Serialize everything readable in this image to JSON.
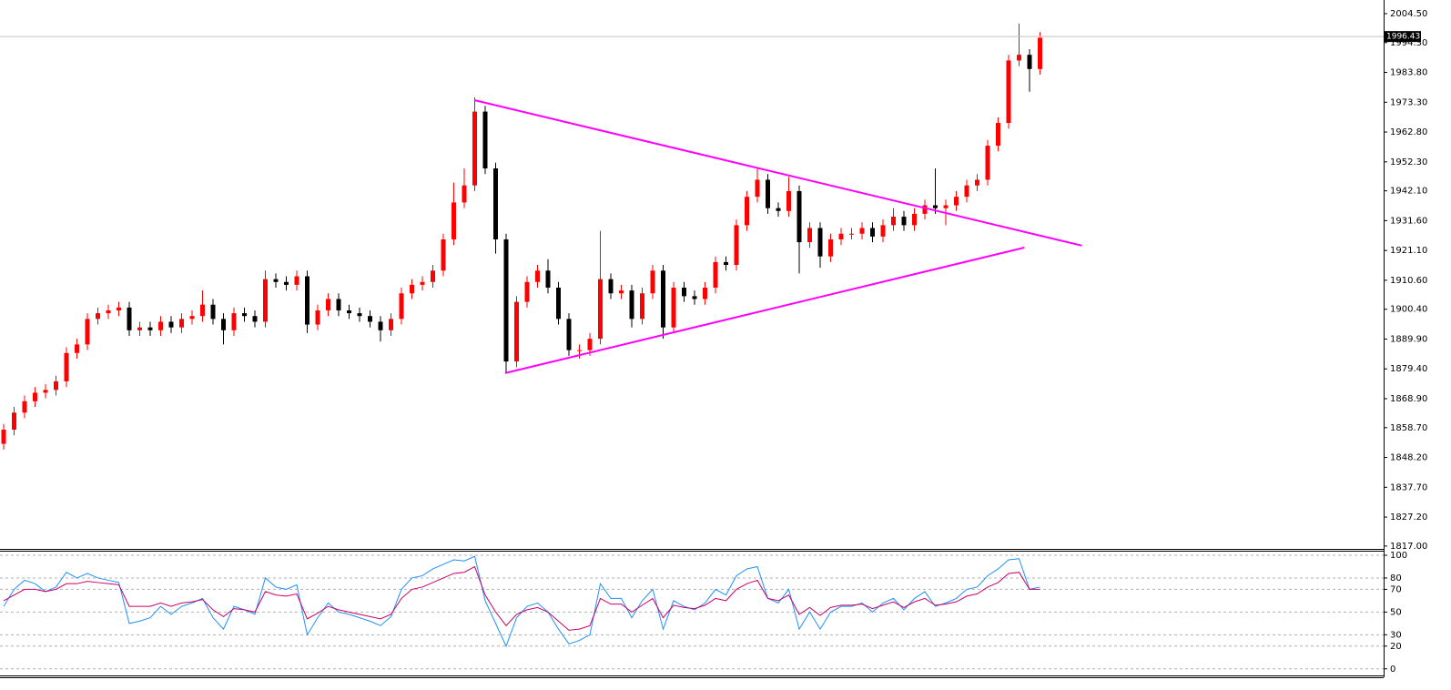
{
  "chart_data": [
    {
      "type": "candlestick",
      "open": [
        1853,
        1858,
        1864,
        1868,
        1871,
        1872,
        1875,
        1885,
        1888,
        1897,
        1899,
        1900,
        1901,
        1893,
        1894,
        1893,
        1896,
        1894,
        1897,
        1898,
        1902,
        1897,
        1893,
        1899,
        1898,
        1896,
        1911,
        1910,
        1909,
        1912,
        1895,
        1900,
        1904,
        1900,
        1899,
        1898,
        1896,
        1893,
        1897,
        1906,
        1909,
        1910,
        1914,
        1925,
        1938,
        1944,
        1970,
        1950,
        1925,
        1882,
        1903,
        1910,
        1914,
        1908,
        1897,
        1886,
        1886,
        1890,
        1911,
        1906,
        1907,
        1897,
        1906,
        1914,
        1894,
        1908,
        1905,
        1904,
        1908,
        1917,
        1916,
        1930,
        1940,
        1946,
        1936,
        1935,
        1942,
        1924,
        1929,
        1919,
        1925,
        1927,
        1927,
        1929,
        1926,
        1930,
        1933,
        1930,
        1934,
        1937,
        1936,
        1937,
        1940,
        1944,
        1946,
        1958,
        1966,
        1988,
        1990,
        1985
      ],
      "high": [
        1860,
        1866,
        1870,
        1873,
        1874,
        1877,
        1887,
        1890,
        1899,
        1901,
        1902,
        1903,
        1903,
        1896,
        1896,
        1898,
        1898,
        1899,
        1900,
        1907,
        1904,
        1899,
        1901,
        1901,
        1900,
        1914,
        1913,
        1912,
        1914,
        1914,
        1902,
        1906,
        1906,
        1902,
        1901,
        1900,
        1898,
        1899,
        1908,
        1911,
        1912,
        1916,
        1927,
        1945,
        1950,
        1975,
        1972,
        1952,
        1927,
        1905,
        1912,
        1916,
        1918,
        1910,
        1899,
        1888,
        1892,
        1928,
        1913,
        1909,
        1909,
        1908,
        1916,
        1916,
        1910,
        1910,
        1907,
        1910,
        1919,
        1919,
        1932,
        1942,
        1950,
        1948,
        1938,
        1947,
        1944,
        1931,
        1931,
        1927,
        1929,
        1929,
        1931,
        1931,
        1932,
        1936,
        1935,
        1936,
        1939,
        1950,
        1939,
        1942,
        1946,
        1948,
        1960,
        1968,
        1990,
        2001,
        1992,
        1998
      ],
      "low": [
        1851,
        1856,
        1862,
        1866,
        1869,
        1870,
        1873,
        1883,
        1886,
        1895,
        1897,
        1898,
        1891,
        1891,
        1891,
        1891,
        1892,
        1892,
        1895,
        1896,
        1895,
        1888,
        1891,
        1896,
        1894,
        1894,
        1908,
        1907,
        1907,
        1892,
        1893,
        1898,
        1898,
        1897,
        1896,
        1894,
        1889,
        1891,
        1895,
        1904,
        1907,
        1908,
        1912,
        1923,
        1936,
        1942,
        1948,
        1920,
        1878,
        1880,
        1901,
        1908,
        1906,
        1895,
        1884,
        1883,
        1884,
        1888,
        1904,
        1904,
        1894,
        1895,
        1904,
        1890,
        1892,
        1903,
        1902,
        1902,
        1906,
        1914,
        1914,
        1928,
        1938,
        1934,
        1933,
        1933,
        1913,
        1922,
        1915,
        1917,
        1923,
        1925,
        1925,
        1924,
        1924,
        1928,
        1928,
        1928,
        1932,
        1934,
        1930,
        1935,
        1938,
        1942,
        1944,
        1956,
        1964,
        1986,
        1977,
        1983
      ],
      "close": [
        1858,
        1864,
        1868,
        1871,
        1872,
        1875,
        1885,
        1888,
        1897,
        1899,
        1900,
        1901,
        1893,
        1894,
        1893,
        1896,
        1894,
        1897,
        1898,
        1902,
        1897,
        1893,
        1899,
        1898,
        1896,
        1911,
        1910,
        1909,
        1912,
        1895,
        1900,
        1904,
        1900,
        1899,
        1898,
        1896,
        1893,
        1897,
        1906,
        1909,
        1910,
        1914,
        1925,
        1938,
        1944,
        1970,
        1950,
        1925,
        1882,
        1903,
        1910,
        1914,
        1908,
        1897,
        1886,
        1886,
        1890,
        1911,
        1906,
        1907,
        1897,
        1906,
        1914,
        1894,
        1908,
        1905,
        1904,
        1908,
        1917,
        1916,
        1930,
        1940,
        1946,
        1936,
        1935,
        1942,
        1924,
        1929,
        1919,
        1925,
        1927,
        1927,
        1929,
        1926,
        1930,
        1933,
        1930,
        1934,
        1937,
        1936,
        1937,
        1940,
        1944,
        1946,
        1958,
        1966,
        1988,
        1990,
        1985,
        1996
      ],
      "up_color": "#ff0000",
      "down_color": "#000000",
      "ylim": [
        1816,
        2009.3
      ],
      "yticks": [
        {
          "value": 2004.5,
          "label": "2004.50"
        },
        {
          "value": 1994.3,
          "label": "1994.30"
        },
        {
          "value": 1983.8,
          "label": "1983.80"
        },
        {
          "value": 1973.3,
          "label": "1973.30"
        },
        {
          "value": 1962.8,
          "label": "1962.80"
        },
        {
          "value": 1952.3,
          "label": "1952.30"
        },
        {
          "value": 1942.1,
          "label": "1942.10"
        },
        {
          "value": 1931.6,
          "label": "1931.60"
        },
        {
          "value": 1921.1,
          "label": "1921.10"
        },
        {
          "value": 1910.6,
          "label": "1910.60"
        },
        {
          "value": 1900.4,
          "label": "1900.40"
        },
        {
          "value": 1889.9,
          "label": "1889.90"
        },
        {
          "value": 1879.4,
          "label": "1879.40"
        },
        {
          "value": 1868.9,
          "label": "1868.90"
        },
        {
          "value": 1858.7,
          "label": "1858.70"
        },
        {
          "value": 1848.2,
          "label": "1848.20"
        },
        {
          "value": 1837.7,
          "label": "1837.70"
        },
        {
          "value": 1827.2,
          "label": "1827.20"
        },
        {
          "value": 1817,
          "label": "1817.00"
        }
      ],
      "last_price": 1996.43,
      "trendlines": [
        {
          "x": [
            45.0,
            103.0
          ],
          "y": [
            1974.0,
            1922.8
          ],
          "color": "#ff00ff"
        },
        {
          "x": [
            47.9,
            97.5
          ],
          "y": [
            1877.9,
            1922.1
          ],
          "color": "#ff00ff"
        }
      ]
    },
    {
      "type": "line",
      "series": [
        {
          "color": "#1e90ff",
          "values": [
            55,
            70,
            78,
            75,
            68,
            72,
            85,
            80,
            84,
            80,
            78,
            76,
            40,
            42,
            45,
            55,
            48,
            55,
            58,
            62,
            45,
            35,
            55,
            52,
            48,
            80,
            72,
            70,
            74,
            30,
            45,
            58,
            50,
            48,
            45,
            42,
            38,
            46,
            70,
            80,
            82,
            88,
            92,
            96,
            95,
            99,
            60,
            40,
            20,
            45,
            55,
            58,
            50,
            35,
            22,
            25,
            30,
            75,
            62,
            62,
            45,
            60,
            70,
            35,
            60,
            55,
            52,
            58,
            70,
            65,
            82,
            88,
            90,
            62,
            58,
            70,
            35,
            50,
            35,
            50,
            55,
            55,
            58,
            50,
            58,
            62,
            52,
            62,
            68,
            55,
            58,
            62,
            70,
            72,
            82,
            88,
            96,
            97,
            70,
            72
          ]
        },
        {
          "color": "#cc0066",
          "values": [
            60,
            65,
            70,
            70,
            68,
            70,
            75,
            75,
            77,
            76,
            75,
            74,
            55,
            55,
            55,
            58,
            55,
            58,
            59,
            61,
            52,
            46,
            53,
            52,
            50,
            68,
            65,
            64,
            66,
            44,
            49,
            55,
            52,
            50,
            48,
            46,
            44,
            48,
            62,
            70,
            72,
            76,
            80,
            84,
            85,
            90,
            65,
            50,
            38,
            48,
            52,
            54,
            50,
            42,
            34,
            35,
            38,
            62,
            57,
            57,
            50,
            56,
            62,
            45,
            56,
            54,
            53,
            56,
            62,
            60,
            70,
            75,
            78,
            62,
            60,
            65,
            48,
            54,
            47,
            54,
            56,
            56,
            57,
            53,
            56,
            59,
            54,
            59,
            62,
            56,
            57,
            59,
            64,
            66,
            72,
            76,
            84,
            85,
            70,
            70
          ]
        }
      ],
      "ylim": [
        -5,
        104
      ],
      "yticks": [
        100,
        80,
        70,
        50,
        30,
        20,
        0
      ],
      "grid": true
    }
  ]
}
